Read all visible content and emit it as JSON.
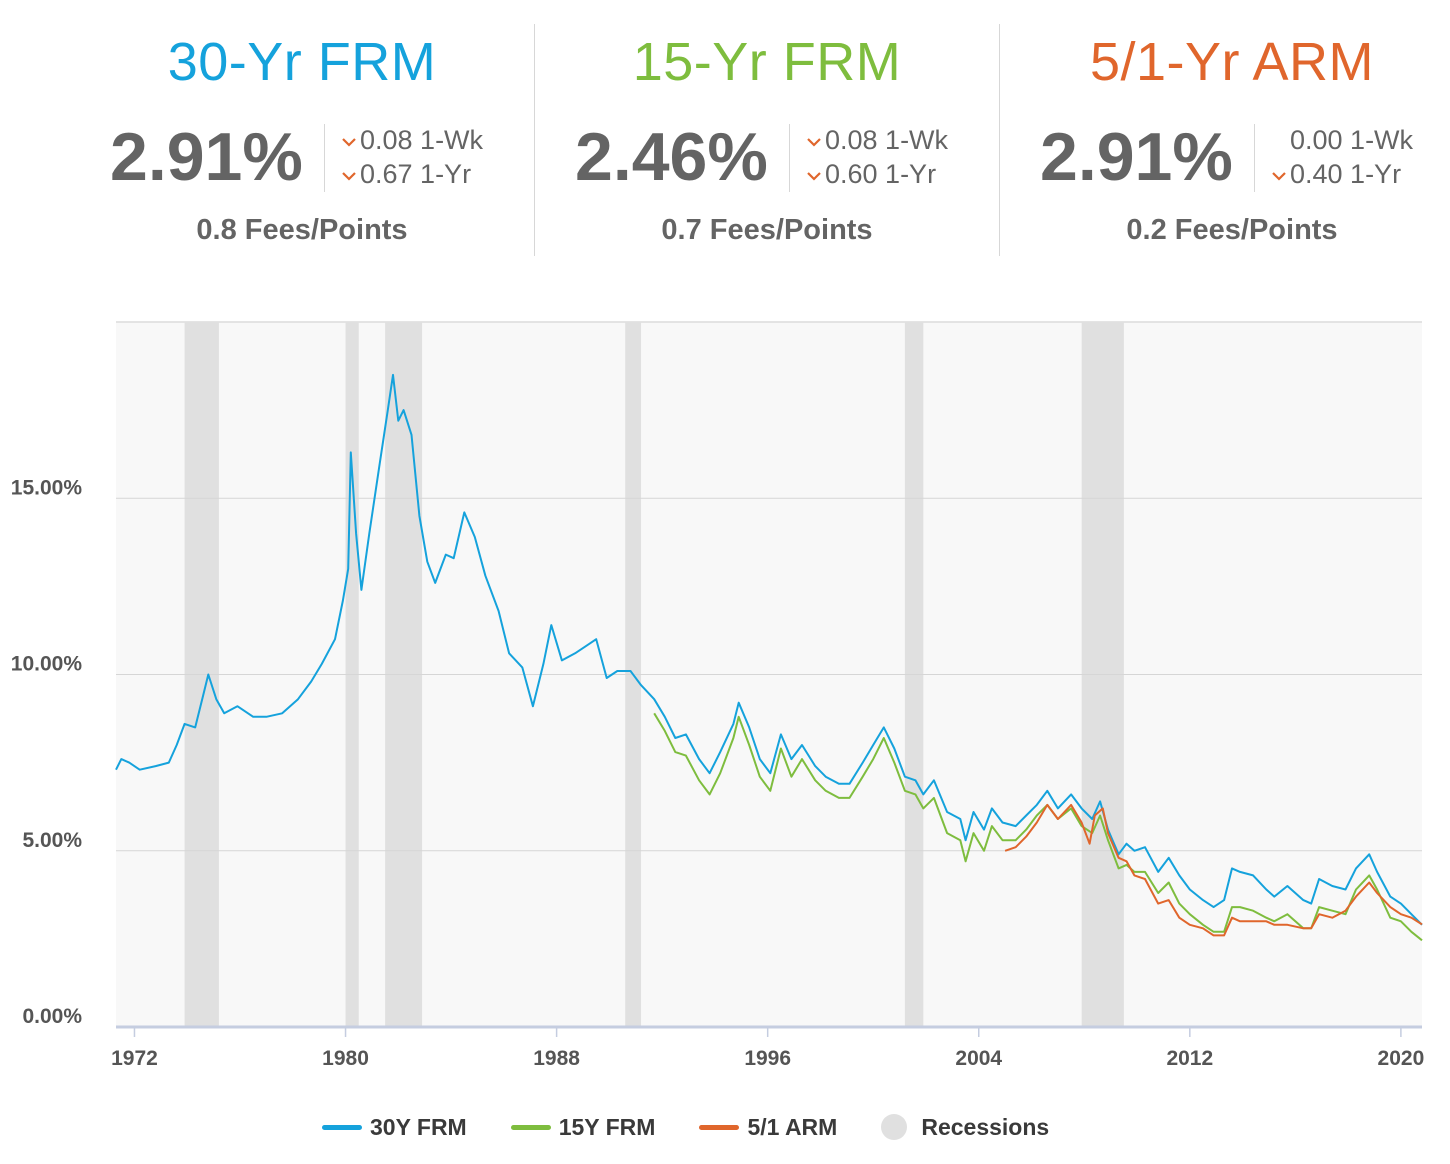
{
  "colors": {
    "frm30": "#15a2dc",
    "frm15": "#7ebd3e",
    "arm51": "#e0662c",
    "recession": "#e0e0e0"
  },
  "rates": [
    {
      "title": "30-Yr FRM",
      "value": "2.91%",
      "wk": "0.08 1-Wk",
      "yr": "0.67 1-Yr",
      "wk_down": true,
      "yr_down": true,
      "fees": "0.8 Fees/Points"
    },
    {
      "title": "15-Yr FRM",
      "value": "2.46%",
      "wk": "0.08 1-Wk",
      "yr": "0.60 1-Yr",
      "wk_down": true,
      "yr_down": true,
      "fees": "0.7 Fees/Points"
    },
    {
      "title": "5/1-Yr ARM",
      "value": "2.91%",
      "wk": "0.00 1-Wk",
      "yr": "0.40 1-Yr",
      "wk_down": false,
      "yr_down": true,
      "fees": "0.2 Fees/Points"
    }
  ],
  "legend": {
    "frm30": "30Y FRM",
    "frm15": "15Y FRM",
    "arm51": "5/1 ARM",
    "recessions": "Recessions"
  },
  "chart_data": {
    "type": "line",
    "title": "",
    "xlabel": "",
    "ylabel": "",
    "xlim": [
      1971.3,
      2020.8
    ],
    "ylim": [
      0,
      20
    ],
    "x_ticks": [
      1972,
      1980,
      1988,
      1996,
      2004,
      2012,
      2020
    ],
    "y_ticks": [
      0,
      5,
      10,
      15
    ],
    "y_tick_labels": [
      "0.00%",
      "5.00%",
      "10.00%",
      "15.00%"
    ],
    "grid": "horizontal",
    "legend_position": "bottom",
    "recessions": [
      [
        1973.9,
        1975.2
      ],
      [
        1980.0,
        1980.5
      ],
      [
        1981.5,
        1982.9
      ],
      [
        1990.6,
        1991.2
      ],
      [
        2001.2,
        2001.9
      ],
      [
        2007.9,
        2009.5
      ]
    ],
    "series": [
      {
        "name": "30Y FRM",
        "color": "#15a2dc",
        "points": [
          [
            1971.3,
            7.3
          ],
          [
            1971.5,
            7.6
          ],
          [
            1971.8,
            7.5
          ],
          [
            1972.2,
            7.3
          ],
          [
            1972.8,
            7.4
          ],
          [
            1973.3,
            7.5
          ],
          [
            1973.6,
            8.0
          ],
          [
            1973.9,
            8.6
          ],
          [
            1974.3,
            8.5
          ],
          [
            1974.6,
            9.4
          ],
          [
            1974.8,
            10.0
          ],
          [
            1975.1,
            9.3
          ],
          [
            1975.4,
            8.9
          ],
          [
            1975.9,
            9.1
          ],
          [
            1976.5,
            8.8
          ],
          [
            1977.0,
            8.8
          ],
          [
            1977.6,
            8.9
          ],
          [
            1978.2,
            9.3
          ],
          [
            1978.7,
            9.8
          ],
          [
            1979.1,
            10.3
          ],
          [
            1979.6,
            11.0
          ],
          [
            1979.9,
            12.1
          ],
          [
            1980.1,
            13.0
          ],
          [
            1980.2,
            16.3
          ],
          [
            1980.4,
            14.0
          ],
          [
            1980.6,
            12.4
          ],
          [
            1980.9,
            14.0
          ],
          [
            1981.3,
            16.0
          ],
          [
            1981.6,
            17.5
          ],
          [
            1981.8,
            18.5
          ],
          [
            1982.0,
            17.2
          ],
          [
            1982.2,
            17.5
          ],
          [
            1982.5,
            16.8
          ],
          [
            1982.8,
            14.5
          ],
          [
            1983.1,
            13.2
          ],
          [
            1983.4,
            12.6
          ],
          [
            1983.8,
            13.4
          ],
          [
            1984.1,
            13.3
          ],
          [
            1984.5,
            14.6
          ],
          [
            1984.9,
            13.9
          ],
          [
            1985.3,
            12.8
          ],
          [
            1985.8,
            11.8
          ],
          [
            1986.2,
            10.6
          ],
          [
            1986.7,
            10.2
          ],
          [
            1987.1,
            9.1
          ],
          [
            1987.5,
            10.3
          ],
          [
            1987.8,
            11.4
          ],
          [
            1988.2,
            10.4
          ],
          [
            1988.7,
            10.6
          ],
          [
            1989.1,
            10.8
          ],
          [
            1989.5,
            11.0
          ],
          [
            1989.9,
            9.9
          ],
          [
            1990.3,
            10.1
          ],
          [
            1990.8,
            10.1
          ],
          [
            1991.2,
            9.7
          ],
          [
            1991.7,
            9.3
          ],
          [
            1992.1,
            8.8
          ],
          [
            1992.5,
            8.2
          ],
          [
            1992.9,
            8.3
          ],
          [
            1993.4,
            7.6
          ],
          [
            1993.8,
            7.2
          ],
          [
            1994.2,
            7.8
          ],
          [
            1994.7,
            8.6
          ],
          [
            1994.9,
            9.2
          ],
          [
            1995.3,
            8.5
          ],
          [
            1995.7,
            7.6
          ],
          [
            1996.1,
            7.2
          ],
          [
            1996.5,
            8.3
          ],
          [
            1996.9,
            7.6
          ],
          [
            1997.3,
            8.0
          ],
          [
            1997.8,
            7.4
          ],
          [
            1998.2,
            7.1
          ],
          [
            1998.7,
            6.9
          ],
          [
            1999.1,
            6.9
          ],
          [
            1999.6,
            7.5
          ],
          [
            2000.0,
            8.0
          ],
          [
            2000.4,
            8.5
          ],
          [
            2000.8,
            7.9
          ],
          [
            2001.2,
            7.1
          ],
          [
            2001.6,
            7.0
          ],
          [
            2001.9,
            6.6
          ],
          [
            2002.3,
            7.0
          ],
          [
            2002.8,
            6.1
          ],
          [
            2003.3,
            5.9
          ],
          [
            2003.5,
            5.3
          ],
          [
            2003.8,
            6.1
          ],
          [
            2004.2,
            5.6
          ],
          [
            2004.5,
            6.2
          ],
          [
            2004.9,
            5.8
          ],
          [
            2005.4,
            5.7
          ],
          [
            2005.8,
            6.0
          ],
          [
            2006.2,
            6.3
          ],
          [
            2006.6,
            6.7
          ],
          [
            2007.0,
            6.2
          ],
          [
            2007.5,
            6.6
          ],
          [
            2007.9,
            6.2
          ],
          [
            2008.3,
            5.9
          ],
          [
            2008.6,
            6.4
          ],
          [
            2008.9,
            5.6
          ],
          [
            2009.3,
            4.9
          ],
          [
            2009.6,
            5.2
          ],
          [
            2009.9,
            5.0
          ],
          [
            2010.3,
            5.1
          ],
          [
            2010.8,
            4.4
          ],
          [
            2011.2,
            4.8
          ],
          [
            2011.6,
            4.3
          ],
          [
            2012.0,
            3.9
          ],
          [
            2012.5,
            3.6
          ],
          [
            2012.9,
            3.4
          ],
          [
            2013.3,
            3.6
          ],
          [
            2013.6,
            4.5
          ],
          [
            2013.9,
            4.4
          ],
          [
            2014.4,
            4.3
          ],
          [
            2014.9,
            3.9
          ],
          [
            2015.2,
            3.7
          ],
          [
            2015.7,
            4.0
          ],
          [
            2016.3,
            3.6
          ],
          [
            2016.6,
            3.5
          ],
          [
            2016.9,
            4.2
          ],
          [
            2017.4,
            4.0
          ],
          [
            2017.9,
            3.9
          ],
          [
            2018.3,
            4.5
          ],
          [
            2018.8,
            4.9
          ],
          [
            2019.1,
            4.4
          ],
          [
            2019.6,
            3.7
          ],
          [
            2020.0,
            3.5
          ],
          [
            2020.4,
            3.2
          ],
          [
            2020.8,
            2.9
          ]
        ]
      },
      {
        "name": "15Y FRM",
        "color": "#7ebd3e",
        "points": [
          [
            1991.7,
            8.9
          ],
          [
            1992.1,
            8.4
          ],
          [
            1992.5,
            7.8
          ],
          [
            1992.9,
            7.7
          ],
          [
            1993.4,
            7.0
          ],
          [
            1993.8,
            6.6
          ],
          [
            1994.2,
            7.2
          ],
          [
            1994.7,
            8.2
          ],
          [
            1994.9,
            8.8
          ],
          [
            1995.3,
            8.0
          ],
          [
            1995.7,
            7.1
          ],
          [
            1996.1,
            6.7
          ],
          [
            1996.5,
            7.9
          ],
          [
            1996.9,
            7.1
          ],
          [
            1997.3,
            7.6
          ],
          [
            1997.8,
            7.0
          ],
          [
            1998.2,
            6.7
          ],
          [
            1998.7,
            6.5
          ],
          [
            1999.1,
            6.5
          ],
          [
            1999.6,
            7.1
          ],
          [
            2000.0,
            7.6
          ],
          [
            2000.4,
            8.2
          ],
          [
            2000.8,
            7.5
          ],
          [
            2001.2,
            6.7
          ],
          [
            2001.6,
            6.6
          ],
          [
            2001.9,
            6.2
          ],
          [
            2002.3,
            6.5
          ],
          [
            2002.8,
            5.5
          ],
          [
            2003.3,
            5.3
          ],
          [
            2003.5,
            4.7
          ],
          [
            2003.8,
            5.5
          ],
          [
            2004.2,
            5.0
          ],
          [
            2004.5,
            5.7
          ],
          [
            2004.9,
            5.3
          ],
          [
            2005.4,
            5.3
          ],
          [
            2005.8,
            5.6
          ],
          [
            2006.2,
            6.0
          ],
          [
            2006.6,
            6.3
          ],
          [
            2007.0,
            5.9
          ],
          [
            2007.5,
            6.2
          ],
          [
            2007.9,
            5.7
          ],
          [
            2008.3,
            5.5
          ],
          [
            2008.6,
            6.0
          ],
          [
            2008.9,
            5.3
          ],
          [
            2009.3,
            4.5
          ],
          [
            2009.6,
            4.6
          ],
          [
            2009.9,
            4.4
          ],
          [
            2010.3,
            4.4
          ],
          [
            2010.8,
            3.8
          ],
          [
            2011.2,
            4.1
          ],
          [
            2011.6,
            3.5
          ],
          [
            2012.0,
            3.2
          ],
          [
            2012.5,
            2.9
          ],
          [
            2012.9,
            2.7
          ],
          [
            2013.3,
            2.7
          ],
          [
            2013.6,
            3.4
          ],
          [
            2013.9,
            3.4
          ],
          [
            2014.4,
            3.3
          ],
          [
            2014.9,
            3.1
          ],
          [
            2015.2,
            3.0
          ],
          [
            2015.7,
            3.2
          ],
          [
            2016.3,
            2.8
          ],
          [
            2016.6,
            2.8
          ],
          [
            2016.9,
            3.4
          ],
          [
            2017.4,
            3.3
          ],
          [
            2017.9,
            3.2
          ],
          [
            2018.3,
            3.9
          ],
          [
            2018.8,
            4.3
          ],
          [
            2019.1,
            3.9
          ],
          [
            2019.6,
            3.1
          ],
          [
            2020.0,
            3.0
          ],
          [
            2020.4,
            2.7
          ],
          [
            2020.8,
            2.46
          ]
        ]
      },
      {
        "name": "5/1 ARM",
        "color": "#e0662c",
        "points": [
          [
            2005.0,
            5.0
          ],
          [
            2005.4,
            5.1
          ],
          [
            2005.8,
            5.4
          ],
          [
            2006.2,
            5.8
          ],
          [
            2006.6,
            6.3
          ],
          [
            2007.0,
            5.9
          ],
          [
            2007.5,
            6.3
          ],
          [
            2007.9,
            5.8
          ],
          [
            2008.2,
            5.2
          ],
          [
            2008.4,
            6.0
          ],
          [
            2008.7,
            6.2
          ],
          [
            2008.9,
            5.5
          ],
          [
            2009.3,
            4.8
          ],
          [
            2009.6,
            4.7
          ],
          [
            2009.9,
            4.3
          ],
          [
            2010.3,
            4.2
          ],
          [
            2010.8,
            3.5
          ],
          [
            2011.2,
            3.6
          ],
          [
            2011.6,
            3.1
          ],
          [
            2012.0,
            2.9
          ],
          [
            2012.5,
            2.8
          ],
          [
            2012.9,
            2.6
          ],
          [
            2013.3,
            2.6
          ],
          [
            2013.6,
            3.1
          ],
          [
            2013.9,
            3.0
          ],
          [
            2014.4,
            3.0
          ],
          [
            2014.9,
            3.0
          ],
          [
            2015.2,
            2.9
          ],
          [
            2015.7,
            2.9
          ],
          [
            2016.3,
            2.8
          ],
          [
            2016.6,
            2.8
          ],
          [
            2016.9,
            3.2
          ],
          [
            2017.4,
            3.1
          ],
          [
            2017.9,
            3.3
          ],
          [
            2018.3,
            3.7
          ],
          [
            2018.8,
            4.1
          ],
          [
            2019.1,
            3.8
          ],
          [
            2019.6,
            3.4
          ],
          [
            2020.0,
            3.2
          ],
          [
            2020.4,
            3.1
          ],
          [
            2020.8,
            2.91
          ]
        ]
      }
    ]
  }
}
